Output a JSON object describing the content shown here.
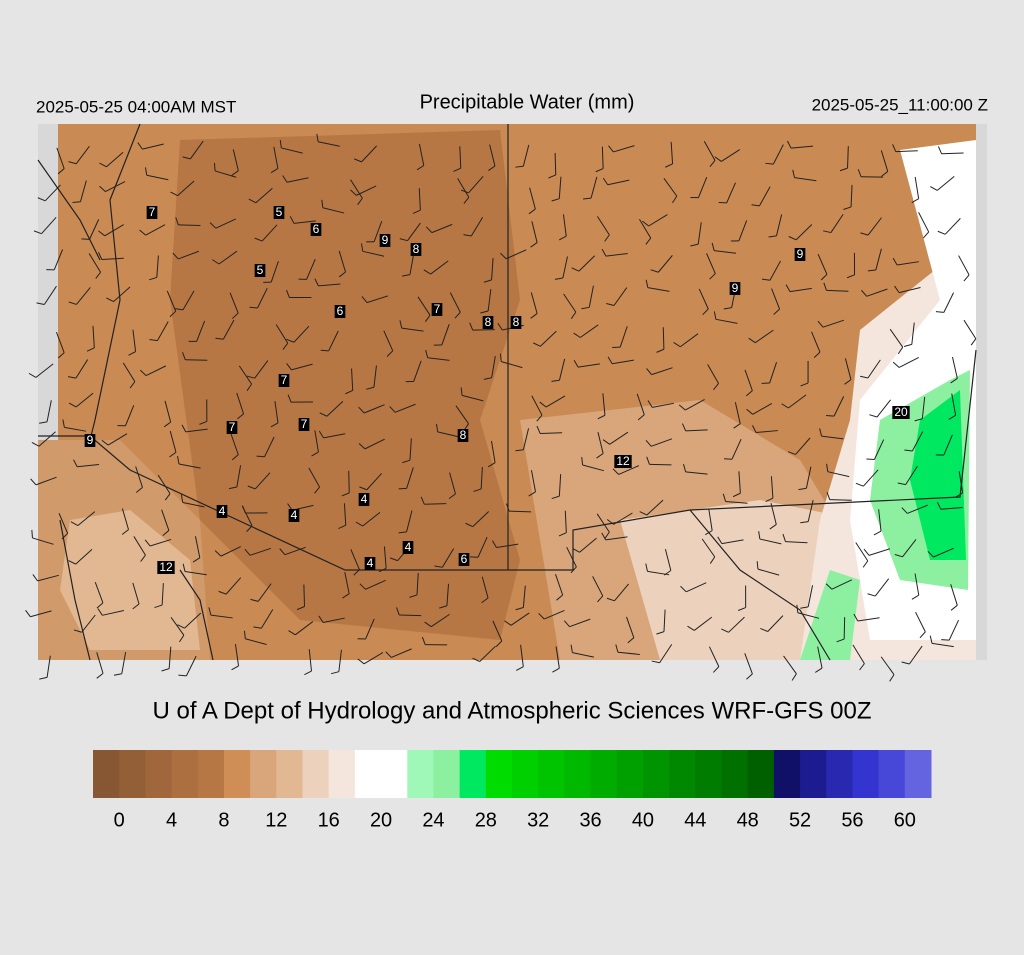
{
  "header": {
    "left": "2025-05-25 04:00AM MST",
    "title": "Precipitable Water (mm)",
    "right": "2025-05-25_11:00:00 Z"
  },
  "map": {
    "stations": [
      7,
      5,
      6,
      9,
      8,
      5,
      6,
      7,
      8,
      8,
      9,
      9,
      7,
      7,
      7,
      8,
      20,
      12,
      9,
      4,
      4,
      4,
      4,
      4,
      6,
      12
    ]
  },
  "footer": "U of A Dept of Hydrology and Atmospheric Sciences WRF-GFS 00Z",
  "colorbar": {
    "range": [
      -2,
      62
    ],
    "ticks": [
      0,
      4,
      8,
      12,
      16,
      20,
      24,
      28,
      32,
      36,
      40,
      44,
      48,
      52,
      56,
      60
    ],
    "colors": [
      "#875733",
      "#935f37",
      "#9f673b",
      "#ab6f40",
      "#b77744",
      "#cf8e56",
      "#d9a57a",
      "#e2b892",
      "#ecd2bd",
      "#f4e6dc",
      "#ffffff",
      "#ffffff",
      "#a0f8b8",
      "#8cf0a0",
      "#00e860",
      "#00dc00",
      "#00d000",
      "#00c400",
      "#00b800",
      "#00ac00",
      "#00a000",
      "#009400",
      "#008800",
      "#007c00",
      "#007000",
      "#006000",
      "#101068",
      "#1c1c90",
      "#2828b0",
      "#3434d0",
      "#4848d8",
      "#6464e0"
    ]
  }
}
